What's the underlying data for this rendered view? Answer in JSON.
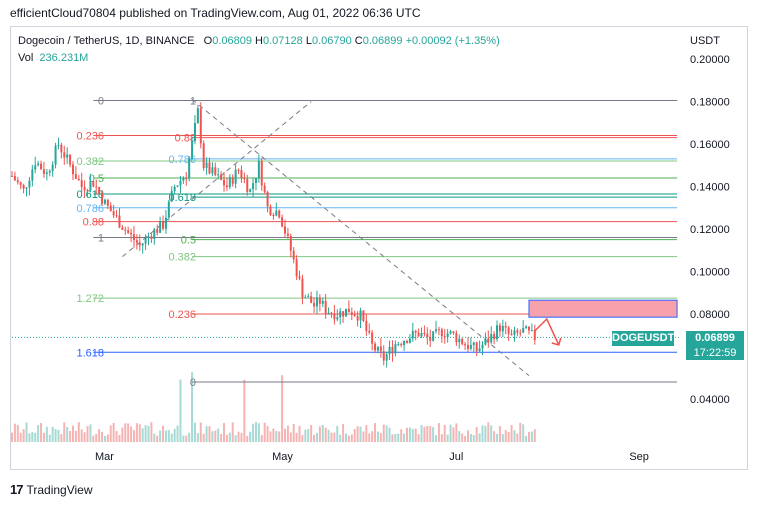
{
  "publish": {
    "text": "efficientCloud70804 published on TradingView.com, Aug 01, 2022 06:36 UTC"
  },
  "header": {
    "symbol": "Dogecoin / TetherUS, 1D, BINANCE",
    "open_label": "O",
    "open": "0.06809",
    "high_label": "H",
    "high": "0.07128",
    "low_label": "L",
    "low": "0.06790",
    "close_label": "C",
    "close": "0.06899",
    "change": "+0.00092 (+1.35%)",
    "vol_label": "Vol",
    "vol": "236.231M"
  },
  "axis_unit": "USDT",
  "price_tag": {
    "symbol": "DOGEUSDT",
    "price": "0.06899",
    "countdown": "17:22:59"
  },
  "brand": {
    "name": "TradingView",
    "mark": "17"
  },
  "colors": {
    "up": "#26a69a",
    "down": "#ef5350",
    "target_box": "#f7a1ad",
    "target_border": "#2962ff"
  },
  "chart_data": {
    "type": "candlestick",
    "y_ticks": [
      "0.20000",
      "0.18000",
      "0.16000",
      "0.14000",
      "0.12000",
      "0.10000",
      "0.08000",
      "0.04000"
    ],
    "y_tick_values": [
      0.2,
      0.18,
      0.16,
      0.14,
      0.12,
      0.1,
      0.08,
      0.04
    ],
    "ylim": [
      0.025,
      0.205
    ],
    "x_ticks": [
      "Mar",
      "May",
      "Jul",
      "Sep"
    ],
    "x_tick_days": [
      32,
      93,
      154,
      216
    ],
    "xlim": [
      0,
      230
    ],
    "close_series_days": [
      0,
      4,
      8,
      12,
      16,
      20,
      24,
      28,
      32,
      36,
      40,
      44,
      48,
      52,
      56,
      60,
      62,
      64,
      66,
      70,
      74,
      78,
      82,
      85,
      88,
      92,
      96,
      100,
      104,
      106,
      108,
      112,
      116,
      120,
      124,
      128,
      132,
      136,
      140,
      144,
      148,
      152,
      156,
      160,
      164,
      168,
      172,
      176,
      180
    ],
    "close_series_values": [
      0.145,
      0.138,
      0.152,
      0.146,
      0.16,
      0.15,
      0.14,
      0.142,
      0.132,
      0.125,
      0.118,
      0.112,
      0.118,
      0.122,
      0.14,
      0.146,
      0.16,
      0.175,
      0.15,
      0.145,
      0.14,
      0.148,
      0.138,
      0.15,
      0.13,
      0.128,
      0.11,
      0.09,
      0.084,
      0.086,
      0.082,
      0.08,
      0.082,
      0.079,
      0.065,
      0.059,
      0.066,
      0.069,
      0.071,
      0.068,
      0.072,
      0.07,
      0.066,
      0.063,
      0.068,
      0.074,
      0.069,
      0.072,
      0.069
    ],
    "fib_sets": [
      {
        "levels": [
          {
            "label": "0",
            "value": 0.1805,
            "color": "#787b86"
          },
          {
            "label": "0.236",
            "value": 0.164,
            "color": "#ef5350"
          },
          {
            "label": "0.382",
            "value": 0.152,
            "color": "#81c784"
          },
          {
            "label": "0.5",
            "value": 0.144,
            "color": "#4caf50"
          },
          {
            "label": "0.618",
            "value": 0.1365,
            "color": "#089981"
          },
          {
            "label": "0.786",
            "value": 0.13,
            "color": "#64b5f6"
          },
          {
            "label": "0.88",
            "value": 0.1235,
            "color": "#ef5350"
          },
          {
            "label": "1",
            "value": 0.116,
            "color": "#787b86"
          },
          {
            "label": "1.272",
            "value": 0.0875,
            "color": "#81c784"
          },
          {
            "label": "1.618",
            "value": 0.062,
            "color": "#2962ff"
          }
        ]
      },
      {
        "levels": [
          {
            "label": "1",
            "value": 0.1805,
            "color": "#787b86"
          },
          {
            "label": "0.88",
            "value": 0.163,
            "color": "#ef5350"
          },
          {
            "label": "0.786",
            "value": 0.153,
            "color": "#64b5f6"
          },
          {
            "label": "0.618",
            "value": 0.135,
            "color": "#089981"
          },
          {
            "label": "0.5",
            "value": 0.115,
            "color": "#4caf50"
          },
          {
            "label": "0.382",
            "value": 0.107,
            "color": "#81c784"
          },
          {
            "label": "0.236",
            "value": 0.08,
            "color": "#ef5350"
          },
          {
            "label": "0",
            "value": 0.048,
            "color": "#787b86"
          }
        ]
      }
    ],
    "target_zone": {
      "day_start": 178,
      "day_end": 229,
      "low": 0.0785,
      "high": 0.0865
    },
    "trendlines": [
      {
        "from_day": 62,
        "from_value": 0.181,
        "to_day": 178,
        "to_value": 0.051
      },
      {
        "from_day": 38,
        "from_value": 0.107,
        "to_day": 103,
        "to_value": 0.18
      }
    ]
  }
}
